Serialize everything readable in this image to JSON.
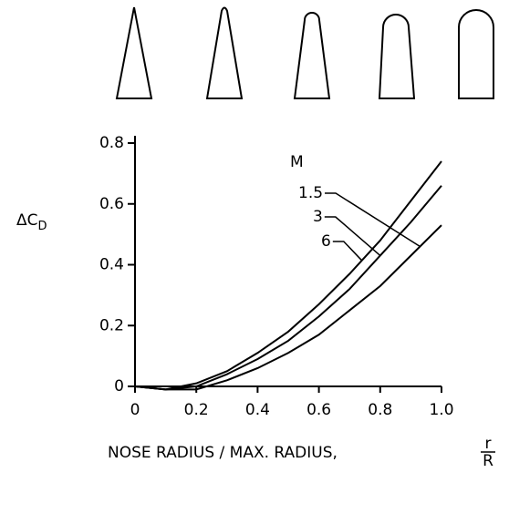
{
  "chart_data": {
    "type": "line",
    "y_label": {
      "main": "ΔC",
      "sub": "D"
    },
    "x_label": "NOSE RADIUS / MAX. RADIUS,",
    "x_label_fraction": {
      "numerator": "r",
      "denominator": "R"
    },
    "legend_title": "M",
    "x": [
      0,
      0.1,
      0.2,
      0.3,
      0.4,
      0.5,
      0.6,
      0.7,
      0.8,
      0.9,
      1.0
    ],
    "series": [
      {
        "name": "1.5",
        "color": "#000000",
        "values": [
          0,
          -0.01,
          -0.01,
          0.02,
          0.06,
          0.11,
          0.17,
          0.25,
          0.33,
          0.43,
          0.53
        ]
      },
      {
        "name": "3",
        "color": "#000000",
        "values": [
          0,
          -0.01,
          0,
          0.04,
          0.09,
          0.15,
          0.23,
          0.32,
          0.43,
          0.54,
          0.66
        ]
      },
      {
        "name": "6",
        "color": "#000000",
        "values": [
          0,
          -0.01,
          0.01,
          0.05,
          0.11,
          0.18,
          0.27,
          0.37,
          0.48,
          0.61,
          0.74
        ]
      }
    ],
    "xlim": [
      0,
      1.0
    ],
    "ylim": [
      0,
      0.8
    ],
    "xticks": [
      {
        "value": 0,
        "label": "0"
      },
      0.2,
      0.4,
      0.6,
      0.8,
      {
        "value": 1,
        "label": "1.0"
      }
    ],
    "yticks": [
      0,
      0.2,
      0.4,
      0.6,
      0.8
    ]
  }
}
